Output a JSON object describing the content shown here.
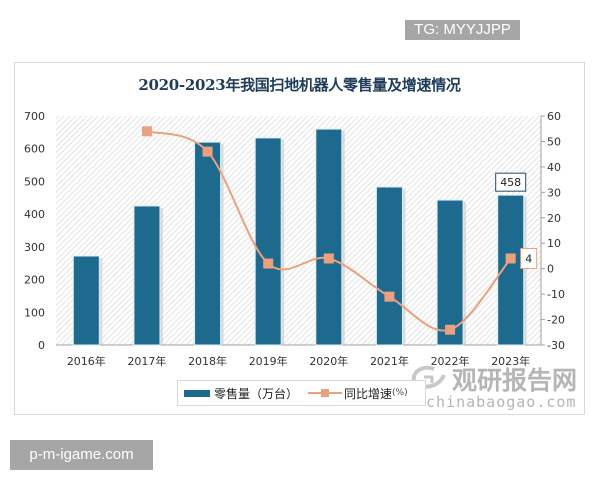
{
  "overlays": {
    "tg_badge": "TG: MYYJJPP",
    "site_badge": "p-m-igame.com"
  },
  "watermark": {
    "cn": "观研报告网",
    "en": "chinabaogao.com"
  },
  "legend": {
    "bar_label": "零售量（万台）",
    "line_label": "同比增速",
    "line_unit": "(%)"
  },
  "colors": {
    "bar": "#1e6a8e",
    "line": "#eba17e",
    "title": "#1f3c5a"
  },
  "chart_data": {
    "type": "bar+line",
    "title": "2020-2023年我国扫地机器人零售量及增速情况",
    "categories": [
      "2016年",
      "2017年",
      "2018年",
      "2019年",
      "2020年",
      "2021年",
      "2022年",
      "2023年"
    ],
    "series": [
      {
        "name": "零售量（万台）",
        "type": "bar",
        "axis": "left",
        "values": [
          272,
          425,
          620,
          633,
          660,
          483,
          443,
          458
        ]
      },
      {
        "name": "同比增速(%)",
        "type": "line",
        "axis": "right",
        "values": [
          null,
          54,
          46,
          2,
          4,
          -11,
          -24,
          4
        ]
      }
    ],
    "data_labels": [
      {
        "series": "零售量（万台）",
        "category": "2023年",
        "text": "458"
      },
      {
        "series": "同比增速(%)",
        "category": "2023年",
        "text": "4"
      }
    ],
    "left_axis": {
      "ylim": [
        0,
        700
      ],
      "ticks": [
        "700",
        "600",
        "500",
        "400",
        "300",
        "200",
        "100",
        "0"
      ]
    },
    "right_axis": {
      "ylim": [
        -30,
        60
      ],
      "ticks": [
        "60",
        "50",
        "40",
        "30",
        "20",
        "10",
        "0",
        "-10",
        "-20",
        "-30"
      ]
    },
    "xlabel": "",
    "ylabel": "",
    "legend_position": "bottom",
    "grid": false
  }
}
